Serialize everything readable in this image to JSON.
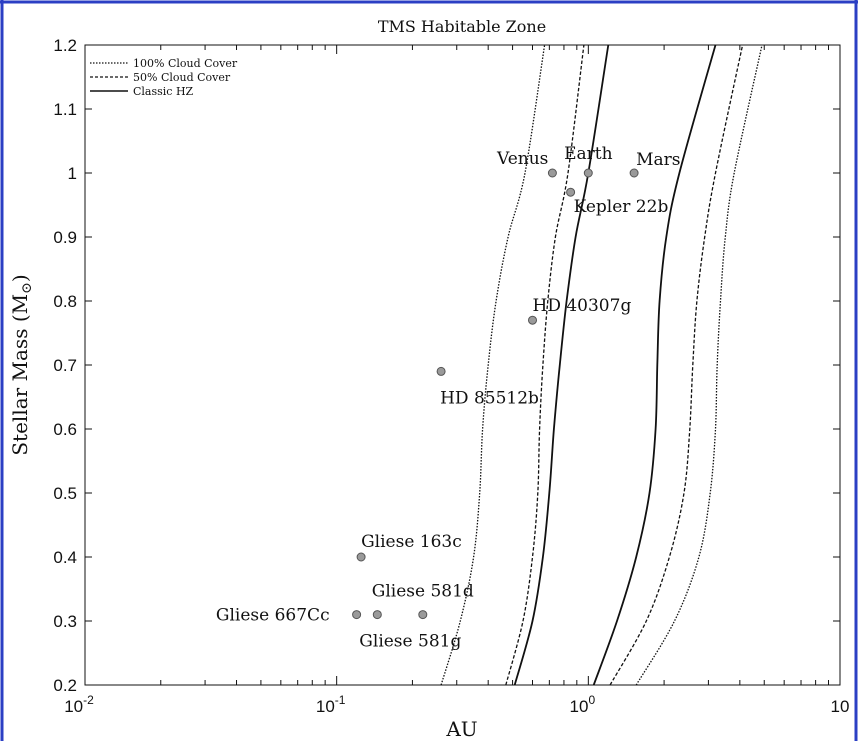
{
  "chart_data": {
    "type": "line",
    "title": "TMS Habitable Zone",
    "xlabel": "AU",
    "ylabel": "Stellar Mass (M",
    "ylabel_sub": "⊙",
    "ylabel_close": ")",
    "xscale": "log",
    "xlim": [
      0.01,
      10
    ],
    "ylim": [
      0.2,
      1.2
    ],
    "x_ticks": [
      {
        "base": "10",
        "exp": "-2"
      },
      {
        "base": "10",
        "exp": "-1"
      },
      {
        "base": "10",
        "exp": "0"
      },
      {
        "base": "10",
        "exp": ""
      }
    ],
    "y_ticks": [
      "0.2",
      "0.3",
      "0.4",
      "0.5",
      "0.6",
      "0.7",
      "0.8",
      "0.9",
      "1",
      "1.1",
      "1.2"
    ],
    "legend_position": "top-left",
    "legend": [
      "100% Cloud Cover",
      "50% Cloud Cover",
      "Classic HZ"
    ],
    "series": [
      {
        "name": "100% Cloud Cover",
        "style": "dotted",
        "x": [
          0.26,
          0.31,
          0.35,
          0.37,
          0.38,
          0.4,
          0.43,
          0.48,
          0.56,
          0.67
        ],
        "y": [
          0.2,
          0.3,
          0.4,
          0.5,
          0.6,
          0.7,
          0.8,
          0.9,
          1.0,
          1.2
        ]
      },
      {
        "name": "50% Cloud Cover",
        "style": "dashed",
        "x": [
          0.47,
          0.55,
          0.6,
          0.63,
          0.64,
          0.66,
          0.69,
          0.74,
          0.83,
          0.96
        ],
        "y": [
          0.2,
          0.3,
          0.4,
          0.5,
          0.6,
          0.7,
          0.8,
          0.9,
          1.0,
          1.2
        ]
      },
      {
        "name": "Classic HZ",
        "style": "solid",
        "x": [
          0.51,
          0.6,
          0.66,
          0.7,
          0.73,
          0.77,
          0.82,
          0.89,
          1.0,
          1.2
        ],
        "y": [
          0.2,
          0.3,
          0.4,
          0.5,
          0.6,
          0.7,
          0.8,
          0.9,
          1.0,
          1.2
        ]
      },
      {
        "name": "Classic HZ",
        "style": "solid",
        "x": [
          1.05,
          1.3,
          1.55,
          1.75,
          1.85,
          1.88,
          1.92,
          2.04,
          2.3,
          3.2
        ],
        "y": [
          0.2,
          0.3,
          0.4,
          0.5,
          0.6,
          0.7,
          0.8,
          0.9,
          1.0,
          1.2
        ]
      },
      {
        "name": "50% Cloud Cover",
        "style": "dashed",
        "x": [
          1.22,
          1.7,
          2.1,
          2.4,
          2.53,
          2.6,
          2.7,
          2.9,
          3.2,
          4.1
        ],
        "y": [
          0.2,
          0.3,
          0.4,
          0.5,
          0.6,
          0.7,
          0.8,
          0.9,
          1.0,
          1.2
        ]
      },
      {
        "name": "100% Cloud Cover",
        "style": "dotted",
        "x": [
          1.55,
          2.2,
          2.75,
          3.05,
          3.2,
          3.25,
          3.35,
          3.5,
          3.8,
          4.9
        ],
        "y": [
          0.2,
          0.3,
          0.4,
          0.5,
          0.6,
          0.7,
          0.8,
          0.9,
          1.0,
          1.2
        ]
      }
    ],
    "points": [
      {
        "label": "Venus",
        "x": 0.72,
        "y": 1.0,
        "anchor": "end",
        "dx": -4,
        "dy": -9
      },
      {
        "label": "Earth",
        "x": 1.0,
        "y": 1.0,
        "anchor": "middle",
        "dx": 0,
        "dy": -14
      },
      {
        "label": "Mars",
        "x": 1.52,
        "y": 1.0,
        "anchor": "start",
        "dx": 2,
        "dy": -8
      },
      {
        "label": "Kepler 22b",
        "x": 0.85,
        "y": 0.97,
        "anchor": "start",
        "dx": 3,
        "dy": 20
      },
      {
        "label": "HD 40307g",
        "x": 0.6,
        "y": 0.77,
        "anchor": "start",
        "dx": 0,
        "dy": -9
      },
      {
        "label": "HD 85512b",
        "x": 0.26,
        "y": 0.69,
        "anchor": "start",
        "dx": -1,
        "dy": 32
      },
      {
        "label": "Gliese 163c",
        "x": 0.125,
        "y": 0.4,
        "anchor": "start",
        "dx": 0,
        "dy": -10
      },
      {
        "label": "Gliese 667Cc",
        "x": 0.12,
        "y": 0.31,
        "anchor": "end",
        "dx": -27,
        "dy": 6
      },
      {
        "label": "Gliese 581g",
        "x": 0.145,
        "y": 0.31,
        "anchor": "start",
        "dx": -18,
        "dy": 32
      },
      {
        "label": "Gliese 581d",
        "x": 0.22,
        "y": 0.31,
        "anchor": "middle",
        "dx": 0,
        "dy": -18
      }
    ]
  }
}
